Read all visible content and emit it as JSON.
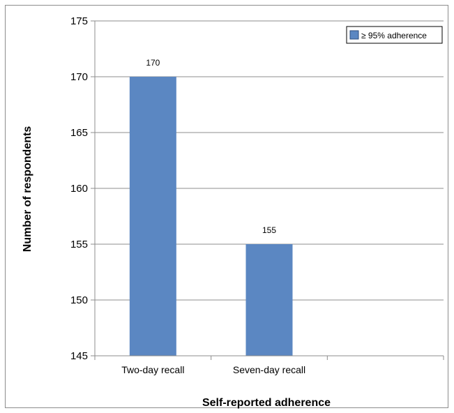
{
  "chart_data": {
    "type": "bar",
    "categories": [
      "Two-day recall",
      "Seven-day recall",
      ""
    ],
    "series": [
      {
        "name": "≥ 95% adherence",
        "values": [
          170,
          155,
          null
        ],
        "color": "#5b87c2"
      }
    ],
    "data_labels": [
      "170",
      "155",
      ""
    ],
    "xlabel": "Self-reported adherence",
    "ylabel": "Number of respondents",
    "ylim": [
      145,
      175
    ],
    "yticks": [
      145,
      150,
      155,
      160,
      165,
      170,
      175
    ],
    "grid": true,
    "legend_position": "top-right"
  }
}
